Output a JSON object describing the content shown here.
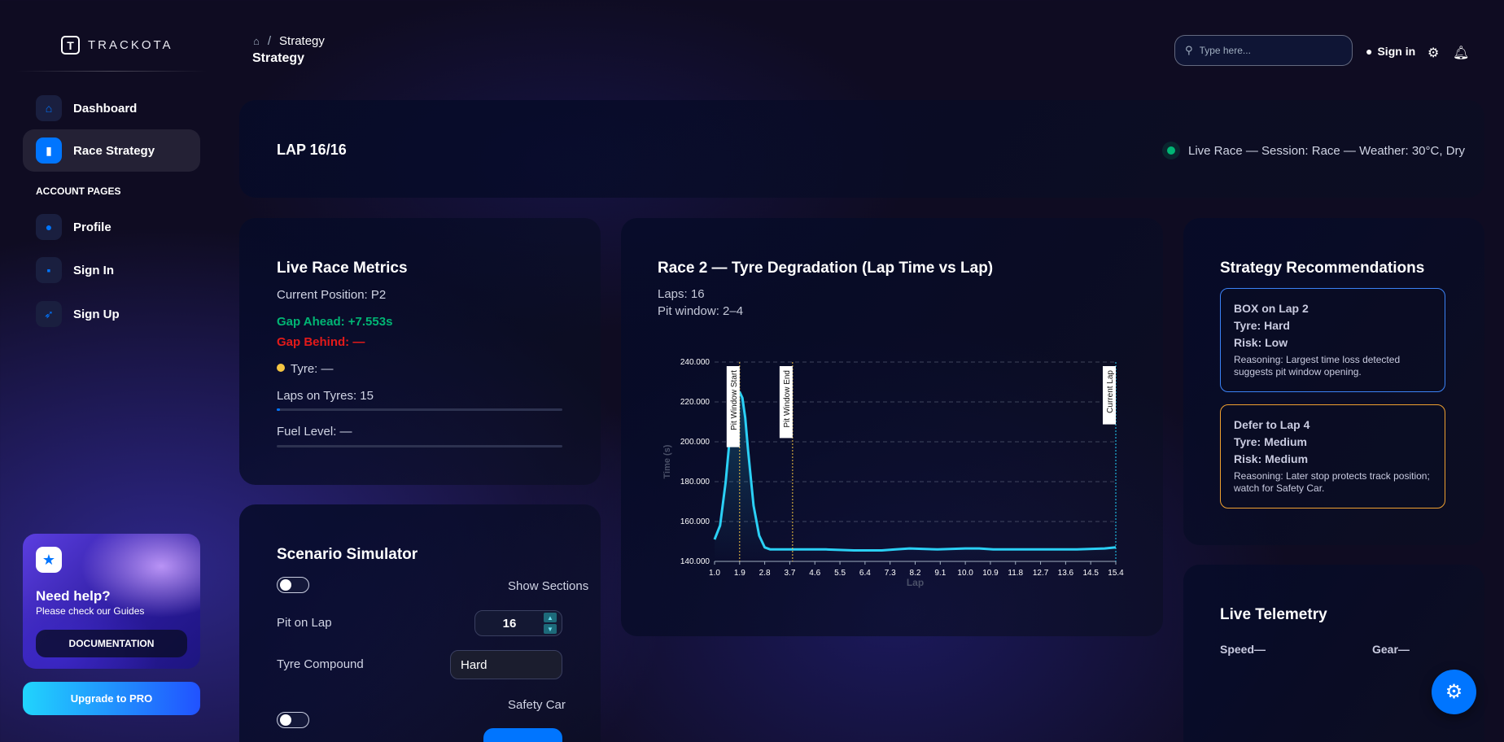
{
  "app": {
    "logo_letter": "T",
    "logo_text": "TRACKOTA"
  },
  "sidebar": {
    "items": [
      {
        "label": "Dashboard",
        "icon": "home-icon"
      },
      {
        "label": "Race Strategy",
        "icon": "chart-icon",
        "active": true
      }
    ],
    "section_label": "ACCOUNT PAGES",
    "account_items": [
      {
        "label": "Profile",
        "icon": "user-icon"
      },
      {
        "label": "Sign In",
        "icon": "document-icon"
      },
      {
        "label": "Sign Up",
        "icon": "rocket-icon"
      }
    ],
    "help": {
      "title": "Need help?",
      "subtitle": "Please check our Guides",
      "button": "DOCUMENTATION"
    },
    "upgrade": "Upgrade to PRO"
  },
  "header": {
    "breadcrumb": "Strategy",
    "title": "Strategy",
    "search_placeholder": "Type here...",
    "signin": "Sign in"
  },
  "lap": {
    "label": "LAP 16/16",
    "status": "Live Race — Session: Race — Weather: 30°C, Dry"
  },
  "metrics": {
    "title": "Live Race Metrics",
    "position": "Current Position: P2",
    "gap_ahead": "Gap Ahead: +7.553s",
    "gap_behind": "Gap Behind: —",
    "tyre": "Tyre: —",
    "laps_on_tyres": "Laps on Tyres: 15",
    "laps_on_tyres_fraction": 0.01,
    "fuel": "Fuel Level: —",
    "fuel_fraction": 0
  },
  "simulator": {
    "title": "Scenario Simulator",
    "show_sections": "Show Sections",
    "pit_on_lap_label": "Pit on Lap",
    "pit_on_lap_value": "16",
    "tyre_label": "Tyre Compound",
    "tyre_value": "Hard",
    "safety_car": "Safety Car"
  },
  "chart_panel": {
    "title": "Race 2 — Tyre Degradation (Lap Time vs Lap)",
    "laps": "Laps: 16",
    "pit_window": "Pit window: 2–4"
  },
  "chart_data": {
    "type": "line",
    "xlabel": "Lap",
    "ylabel": "Time (s)",
    "ylim": [
      140,
      240
    ],
    "xlim": [
      1.0,
      15.4
    ],
    "x_ticks": [
      "1.0",
      "1.9",
      "2.8",
      "3.7",
      "4.6",
      "5.5",
      "6.4",
      "7.3",
      "8.2",
      "9.1",
      "10.0",
      "10.9",
      "11.8",
      "12.7",
      "13.6",
      "14.5",
      "15.4"
    ],
    "y_ticks": [
      "240.000",
      "220.000",
      "200.000",
      "180.000",
      "160.000",
      "140.000"
    ],
    "series": [
      {
        "x": [
          1.0,
          1.2,
          1.4,
          1.6,
          1.8,
          1.9,
          2.0,
          2.1,
          2.2,
          2.4,
          2.6,
          2.8,
          3.0,
          4.0,
          5.0,
          6.0,
          7.0,
          7.5,
          8.0,
          9.0,
          10.0,
          10.5,
          11.0,
          12.0,
          13.0,
          14.0,
          15.0,
          15.4
        ],
        "y": [
          151,
          158,
          180,
          210,
          222,
          225,
          222,
          212,
          196,
          168,
          153,
          147,
          146,
          146,
          146,
          145.5,
          145.5,
          146,
          146.5,
          146,
          146.5,
          146.5,
          146,
          146,
          146,
          146,
          146.5,
          147
        ]
      }
    ],
    "annotations": [
      {
        "x": 1.9,
        "label": "Pit Window Start",
        "color": "#f5c542"
      },
      {
        "x": 3.8,
        "label": "Pit Window End",
        "color": "#f5c542"
      },
      {
        "x": 15.4,
        "label": "Current Lap",
        "color": "#21d4fd"
      }
    ],
    "line_color": "#2bd0f5",
    "grid": true
  },
  "strategy": {
    "title": "Strategy Recommendations",
    "recs": [
      {
        "title": "BOX on Lap 2",
        "tyre": "Tyre: Hard",
        "risk": "Risk: Low",
        "reason": "Reasoning: Largest time loss detected suggests pit window opening.",
        "color": "#3b82f6"
      },
      {
        "title": "Defer to Lap 4",
        "tyre": "Tyre: Medium",
        "risk": "Risk: Medium",
        "reason": "Reasoning: Later stop protects track position; watch for Safety Car.",
        "color": "#f0a030"
      }
    ]
  },
  "telemetry": {
    "title": "Live Telemetry",
    "speed": "Speed—",
    "gear": "Gear—"
  },
  "colors": {
    "accent": "#0075ff",
    "positive": "#01b574",
    "negative": "#e31a1a"
  }
}
